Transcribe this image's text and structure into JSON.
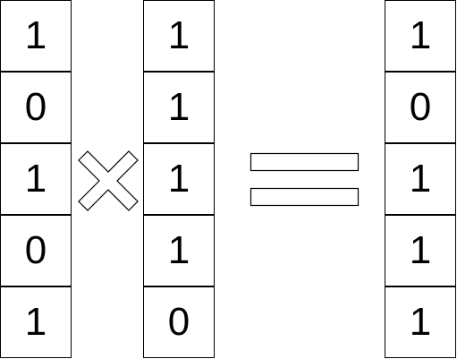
{
  "columns": [
    {
      "name": "operand-a",
      "values": [
        "1",
        "0",
        "1",
        "0",
        "1"
      ]
    },
    {
      "name": "operand-b",
      "values": [
        "1",
        "1",
        "1",
        "1",
        "0"
      ]
    },
    {
      "name": "result",
      "values": [
        "1",
        "0",
        "1",
        "1",
        "1"
      ]
    }
  ],
  "operators": {
    "multiply": "multiply-sign-icon",
    "equals": "equals-sign-icon"
  },
  "colors": {
    "stroke": "#000000",
    "fill": "#ffffff"
  }
}
